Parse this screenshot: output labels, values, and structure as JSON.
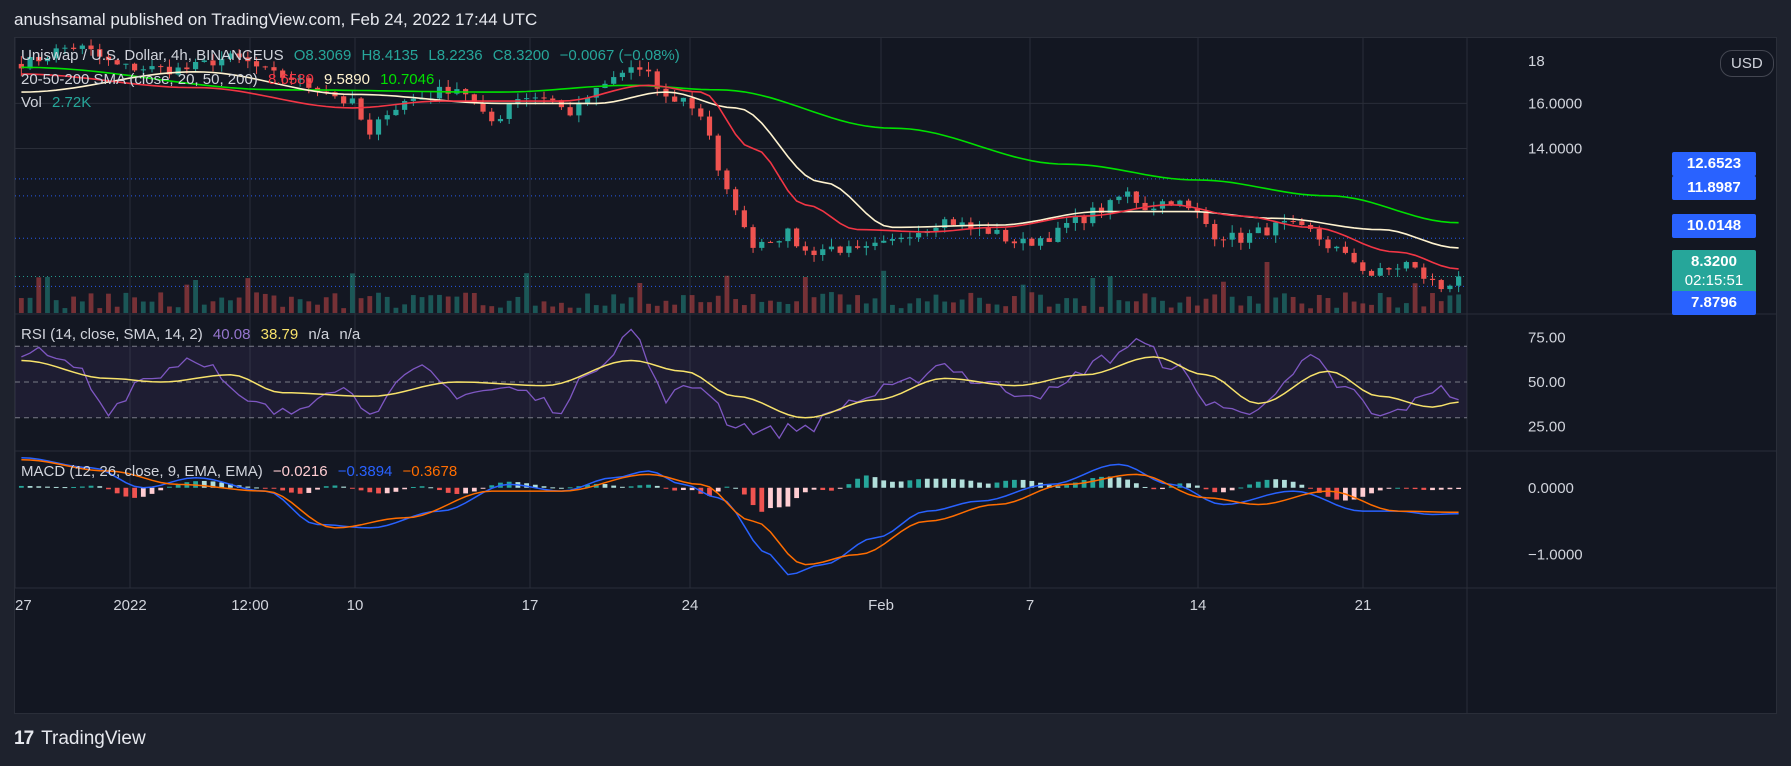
{
  "header": {
    "publisher": "anushsamal published on TradingView.com, Feb 24, 2022 17:44 UTC"
  },
  "currency_button": "USD",
  "legend": {
    "symbol": "Uniswap / U.S. Dollar, 4h, BINANCEUS",
    "o": "O8.3069",
    "h": "H8.4135",
    "l": "L8.2236",
    "c": "C8.3200",
    "change": "−0.0067 (−0.08%)",
    "sma_label": "20-50-200 SMA (close, 20, 50, 200)",
    "sma20": "8.6580",
    "sma50": "9.5890",
    "sma200": "10.7046",
    "vol_label": "Vol",
    "vol_value": "2.72K",
    "rsi_label": "RSI (14, close, SMA, 14, 2)",
    "rsi_val": "40.08",
    "rsi_sma": "38.79",
    "rsi_na1": "n/a",
    "rsi_na2": "n/a",
    "macd_label": "MACD (12, 26, close, 9, EMA, EMA)",
    "macd_hist": "−0.0216",
    "macd_line": "−0.3894",
    "macd_signal": "−0.3678"
  },
  "price_labels": {
    "p12": "12.6523",
    "p11": "11.8987",
    "p10": "10.0148",
    "p8": "8.3200",
    "countdown": "02:15:51",
    "p7": "7.8796"
  },
  "footer": {
    "logo": "TradingView"
  },
  "colors": {
    "up": "#26a69a",
    "down": "#ef5350",
    "sma20": "#f23645",
    "sma50": "#fff3cf",
    "sma200": "#00e100",
    "rsi": "#7e57c2",
    "rsi_sma": "#f7e26b",
    "macd": "#2962ff",
    "signal": "#ff6d00",
    "blue_tag": "#2962ff",
    "green_tag": "#26a69a"
  },
  "chart_data": [
    {
      "type": "candlestick",
      "title": "Uniswap / U.S. Dollar, 4h, BINANCEUS",
      "x_ticks": [
        "27",
        "2022",
        "12:00",
        "10",
        "17",
        "24",
        "Feb",
        "7",
        "14",
        "21"
      ],
      "y_ticks": [
        "16.0000",
        "14.0000"
      ],
      "y_ticks_partial": [
        "18"
      ],
      "ylim": [
        6.7,
        18.9
      ],
      "anchors": [
        [
          0,
          17.8
        ],
        [
          6,
          18.5
        ],
        [
          12,
          17.6
        ],
        [
          18,
          17.5
        ],
        [
          24,
          18.0
        ],
        [
          30,
          17.2
        ],
        [
          34,
          16.7
        ],
        [
          38,
          16.0
        ],
        [
          40,
          14.5
        ],
        [
          42,
          15.7
        ],
        [
          45,
          16.2
        ],
        [
          50,
          16.7
        ],
        [
          54,
          15.2
        ],
        [
          57,
          16.3
        ],
        [
          60,
          16.3
        ],
        [
          63,
          15.6
        ],
        [
          66,
          16.5
        ],
        [
          68,
          17.1
        ],
        [
          70,
          17.6
        ],
        [
          72,
          17.2
        ],
        [
          74,
          16.2
        ],
        [
          76,
          16.2
        ],
        [
          78,
          15.5
        ],
        [
          81,
          12.0
        ],
        [
          84,
          9.8
        ],
        [
          86,
          10.0
        ],
        [
          88,
          10.2
        ],
        [
          90,
          9.4
        ],
        [
          93,
          9.6
        ],
        [
          96,
          9.4
        ],
        [
          99,
          9.7
        ],
        [
          102,
          10.3
        ],
        [
          106,
          10.8
        ],
        [
          110,
          10.4
        ],
        [
          115,
          9.8
        ],
        [
          118,
          10.1
        ],
        [
          121,
          10.8
        ],
        [
          124,
          11.3
        ],
        [
          127,
          12.0
        ],
        [
          129,
          11.4
        ],
        [
          132,
          11.7
        ],
        [
          135,
          11.1
        ],
        [
          137,
          10.2
        ],
        [
          140,
          10.0
        ],
        [
          142,
          10.3
        ],
        [
          145,
          10.6
        ],
        [
          148,
          10.3
        ],
        [
          150,
          9.7
        ],
        [
          153,
          9.0
        ],
        [
          155,
          8.4
        ],
        [
          157,
          8.6
        ],
        [
          159,
          8.9
        ],
        [
          161,
          8.3
        ],
        [
          163,
          7.8
        ],
        [
          165,
          8.32
        ]
      ],
      "sma_anchors": {
        "sma20": [
          [
            0,
            17.3
          ],
          [
            20,
            16.7
          ],
          [
            38,
            15.8
          ],
          [
            48,
            16.1
          ],
          [
            62,
            16.1
          ],
          [
            72,
            16.8
          ],
          [
            78,
            16.5
          ],
          [
            84,
            14.0
          ],
          [
            90,
            11.5
          ],
          [
            96,
            10.4
          ],
          [
            104,
            10.3
          ],
          [
            112,
            10.5
          ],
          [
            122,
            11.0
          ],
          [
            132,
            11.5
          ],
          [
            140,
            11.0
          ],
          [
            148,
            10.5
          ],
          [
            158,
            9.4
          ],
          [
            165,
            8.658
          ]
        ],
        "sma50": [
          [
            0,
            16.5
          ],
          [
            20,
            17.4
          ],
          [
            38,
            16.4
          ],
          [
            55,
            16.0
          ],
          [
            66,
            16.0
          ],
          [
            74,
            16.5
          ],
          [
            82,
            15.8
          ],
          [
            92,
            12.5
          ],
          [
            100,
            10.5
          ],
          [
            112,
            10.6
          ],
          [
            124,
            11.2
          ],
          [
            134,
            11.2
          ],
          [
            144,
            10.9
          ],
          [
            156,
            10.4
          ],
          [
            165,
            9.589
          ]
        ],
        "sma200": [
          [
            0,
            17.6
          ],
          [
            30,
            16.6
          ],
          [
            55,
            16.5
          ],
          [
            70,
            16.8
          ],
          [
            80,
            16.6
          ],
          [
            100,
            14.9
          ],
          [
            120,
            13.3
          ],
          [
            135,
            12.6
          ],
          [
            150,
            11.9
          ],
          [
            165,
            10.7046
          ]
        ]
      }
    },
    {
      "type": "bar",
      "title": "Vol",
      "last_value": "2.72K"
    },
    {
      "type": "line",
      "title": "RSI (14, close, SMA, 14, 2)",
      "y_ticks": [
        "75.00",
        "50.00",
        "25.00"
      ],
      "ylim": [
        12,
        88
      ],
      "bands": {
        "upper": 70,
        "middle": 50,
        "lower": 30
      },
      "rsi_anchors": [
        [
          0,
          68
        ],
        [
          6,
          59
        ],
        [
          10,
          35
        ],
        [
          14,
          52
        ],
        [
          20,
          64
        ],
        [
          26,
          38
        ],
        [
          30,
          32
        ],
        [
          36,
          48
        ],
        [
          40,
          36
        ],
        [
          46,
          56
        ],
        [
          50,
          44
        ],
        [
          56,
          46
        ],
        [
          62,
          36
        ],
        [
          66,
          60
        ],
        [
          70,
          78
        ],
        [
          74,
          42
        ],
        [
          78,
          48
        ],
        [
          82,
          26
        ],
        [
          86,
          22
        ],
        [
          90,
          25
        ],
        [
          96,
          40
        ],
        [
          100,
          46
        ],
        [
          106,
          60
        ],
        [
          110,
          50
        ],
        [
          114,
          45
        ],
        [
          118,
          44
        ],
        [
          124,
          62
        ],
        [
          128,
          72
        ],
        [
          132,
          60
        ],
        [
          136,
          40
        ],
        [
          140,
          32
        ],
        [
          144,
          44
        ],
        [
          148,
          62
        ],
        [
          152,
          46
        ],
        [
          156,
          30
        ],
        [
          160,
          38
        ],
        [
          163,
          49
        ],
        [
          165,
          40.08
        ]
      ],
      "sma_anchors": [
        [
          0,
          62
        ],
        [
          10,
          52
        ],
        [
          16,
          50
        ],
        [
          24,
          54
        ],
        [
          30,
          44
        ],
        [
          40,
          42
        ],
        [
          50,
          50
        ],
        [
          60,
          48
        ],
        [
          70,
          62
        ],
        [
          76,
          56
        ],
        [
          82,
          42
        ],
        [
          90,
          30
        ],
        [
          98,
          40
        ],
        [
          106,
          52
        ],
        [
          114,
          48
        ],
        [
          122,
          54
        ],
        [
          130,
          64
        ],
        [
          136,
          54
        ],
        [
          142,
          38
        ],
        [
          150,
          56
        ],
        [
          156,
          42
        ],
        [
          162,
          36
        ],
        [
          165,
          38.79
        ]
      ]
    },
    {
      "type": "line",
      "title": "MACD (12, 26, close, 9, EMA, EMA)",
      "y_ticks": [
        "0.0000",
        "−1.0000"
      ],
      "ylim": [
        -1.5,
        0.55
      ],
      "macd_anchors": [
        [
          0,
          0.45
        ],
        [
          8,
          0.3
        ],
        [
          14,
          0.0
        ],
        [
          20,
          0.15
        ],
        [
          28,
          -0.05
        ],
        [
          34,
          -0.55
        ],
        [
          40,
          -0.6
        ],
        [
          48,
          -0.35
        ],
        [
          56,
          0.05
        ],
        [
          62,
          -0.05
        ],
        [
          68,
          0.15
        ],
        [
          72,
          0.25
        ],
        [
          76,
          0.05
        ],
        [
          80,
          -0.15
        ],
        [
          86,
          -1.0
        ],
        [
          88,
          -1.3
        ],
        [
          92,
          -1.15
        ],
        [
          98,
          -0.75
        ],
        [
          104,
          -0.35
        ],
        [
          110,
          -0.2
        ],
        [
          118,
          0.05
        ],
        [
          126,
          0.35
        ],
        [
          132,
          0.05
        ],
        [
          138,
          -0.25
        ],
        [
          146,
          -0.05
        ],
        [
          154,
          -0.35
        ],
        [
          158,
          -0.35
        ],
        [
          162,
          -0.4
        ],
        [
          165,
          -0.389
        ]
      ],
      "signal_anchors": [
        [
          0,
          0.42
        ],
        [
          10,
          0.25
        ],
        [
          18,
          0.05
        ],
        [
          28,
          -0.05
        ],
        [
          36,
          -0.6
        ],
        [
          44,
          -0.45
        ],
        [
          54,
          -0.05
        ],
        [
          62,
          -0.05
        ],
        [
          72,
          0.2
        ],
        [
          78,
          0.05
        ],
        [
          84,
          -0.5
        ],
        [
          90,
          -1.15
        ],
        [
          96,
          -1.0
        ],
        [
          104,
          -0.5
        ],
        [
          112,
          -0.25
        ],
        [
          120,
          0.05
        ],
        [
          128,
          0.2
        ],
        [
          136,
          -0.15
        ],
        [
          142,
          -0.25
        ],
        [
          150,
          -0.05
        ],
        [
          158,
          -0.35
        ],
        [
          165,
          -0.368
        ]
      ]
    }
  ]
}
